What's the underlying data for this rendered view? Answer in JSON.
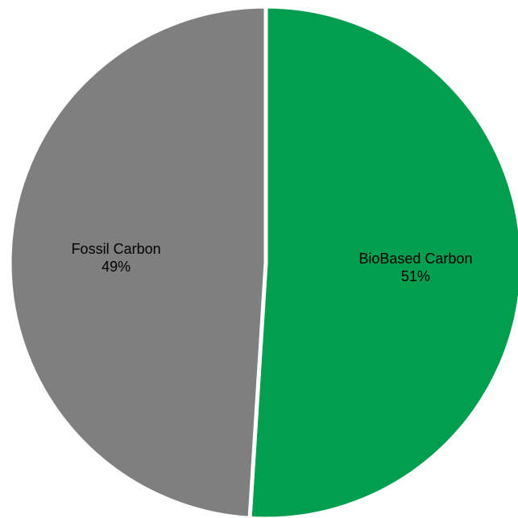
{
  "chart_data": {
    "type": "pie",
    "title": "",
    "start_angle_deg": 0,
    "direction": "clockwise",
    "slices": [
      {
        "name": "BioBased Carbon",
        "value": 51,
        "label": "51%",
        "color": "#029E4F"
      },
      {
        "name": "Fossil Carbon",
        "value": 49,
        "label": "49%",
        "color": "#7F7F7F"
      }
    ],
    "separator_color": "#FFFFFF",
    "legend": "none"
  }
}
